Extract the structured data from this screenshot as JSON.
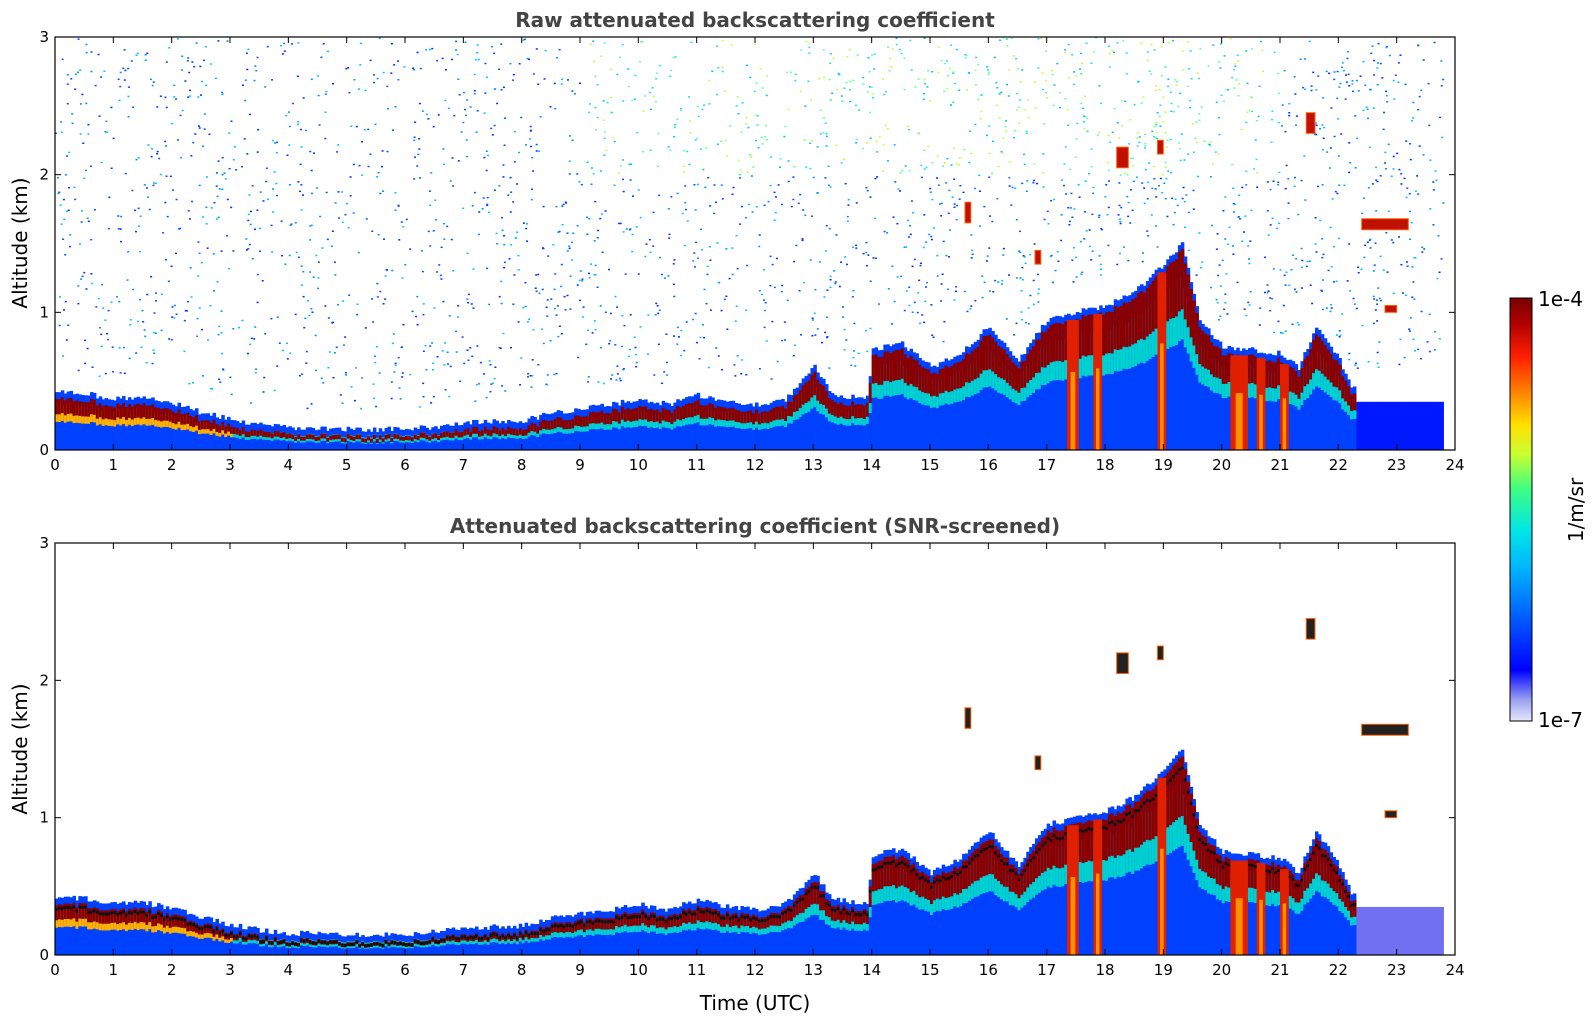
{
  "chart_data": {
    "type": "heatmap",
    "colorbar": {
      "max_label": "1e-4",
      "min_label": "1e-7",
      "unit_label": "1/m/sr",
      "scale": "log",
      "colormap": "jet",
      "colors": [
        "#e8e8fb",
        "#9aa0f0",
        "#0000ff",
        "#00a0ff",
        "#00e6e6",
        "#40ff80",
        "#c8ff30",
        "#ffe000",
        "#ff8000",
        "#ff2000",
        "#b00000",
        "#7a0000"
      ]
    },
    "panels": [
      {
        "title": "Raw attenuated backscattering coefficient",
        "ylabel": "Altitude (km)",
        "xlabel": "",
        "xlim": [
          0,
          24
        ],
        "ylim": [
          0,
          3
        ],
        "xticks": [
          "0",
          "1",
          "2",
          "3",
          "4",
          "5",
          "6",
          "7",
          "8",
          "9",
          "10",
          "11",
          "12",
          "13",
          "14",
          "15",
          "16",
          "17",
          "18",
          "19",
          "20",
          "21",
          "22",
          "23",
          "24"
        ],
        "yticks": [
          "0",
          "1",
          "2",
          "3"
        ],
        "noise_top_km": 3.0
      },
      {
        "title": "Attenuated backscattering coefficient (SNR-screened)",
        "ylabel": "Altitude (km)",
        "xlabel": "Time (UTC)",
        "xlim": [
          0,
          24
        ],
        "ylim": [
          0,
          3
        ],
        "xticks": [
          "0",
          "1",
          "2",
          "3",
          "4",
          "5",
          "6",
          "7",
          "8",
          "9",
          "10",
          "11",
          "12",
          "13",
          "14",
          "15",
          "16",
          "17",
          "18",
          "19",
          "20",
          "21",
          "22",
          "23",
          "24"
        ],
        "yticks": [
          "0",
          "1",
          "2",
          "3"
        ],
        "noise_top_km": 0
      }
    ],
    "boundary_layer_top_km": [
      [
        0,
        0.38
      ],
      [
        0.5,
        0.36
      ],
      [
        1,
        0.32
      ],
      [
        1.5,
        0.33
      ],
      [
        2,
        0.29
      ],
      [
        2.5,
        0.22
      ],
      [
        3,
        0.17
      ],
      [
        3.5,
        0.13
      ],
      [
        4,
        0.11
      ],
      [
        5,
        0.1
      ],
      [
        6,
        0.1
      ],
      [
        6.5,
        0.12
      ],
      [
        7,
        0.15
      ],
      [
        8,
        0.16
      ],
      [
        8.5,
        0.22
      ],
      [
        9,
        0.25
      ],
      [
        9.5,
        0.28
      ],
      [
        10,
        0.32
      ],
      [
        10.5,
        0.28
      ],
      [
        11,
        0.35
      ],
      [
        11.5,
        0.3
      ],
      [
        12,
        0.28
      ],
      [
        12.5,
        0.32
      ],
      [
        13,
        0.55
      ],
      [
        13.3,
        0.35
      ],
      [
        13.9,
        0.33
      ],
      [
        14,
        0.68
      ],
      [
        14.5,
        0.72
      ],
      [
        15,
        0.55
      ],
      [
        15.5,
        0.65
      ],
      [
        16,
        0.85
      ],
      [
        16.5,
        0.6
      ],
      [
        17,
        0.9
      ],
      [
        17.5,
        0.95
      ],
      [
        18,
        1.0
      ],
      [
        18.5,
        1.1
      ],
      [
        19,
        1.3
      ],
      [
        19.3,
        1.45
      ],
      [
        19.6,
        0.9
      ],
      [
        20,
        0.7
      ],
      [
        20.5,
        0.68
      ],
      [
        21,
        0.65
      ],
      [
        21.3,
        0.55
      ],
      [
        21.6,
        0.85
      ],
      [
        22,
        0.6
      ],
      [
        22.2,
        0.4
      ]
    ],
    "elevated_layers": [
      {
        "t": [
          18.2,
          18.4
        ],
        "z": [
          2.05,
          2.2
        ]
      },
      {
        "t": [
          18.9,
          19.0
        ],
        "z": [
          2.15,
          2.25
        ]
      },
      {
        "t": [
          21.45,
          21.6
        ],
        "z": [
          2.3,
          2.45
        ]
      },
      {
        "t": [
          22.4,
          23.2
        ],
        "z": [
          1.6,
          1.68
        ]
      },
      {
        "t": [
          15.6,
          15.7
        ],
        "z": [
          1.65,
          1.8
        ]
      },
      {
        "t": [
          16.8,
          16.9
        ],
        "z": [
          1.35,
          1.45
        ]
      },
      {
        "t": [
          22.8,
          23.0
        ],
        "z": [
          1.0,
          1.05
        ]
      }
    ],
    "precipitation_columns": [
      {
        "t": [
          17.35,
          17.55
        ]
      },
      {
        "t": [
          17.8,
          17.95
        ]
      },
      {
        "t": [
          18.9,
          19.05
        ]
      },
      {
        "t": [
          20.15,
          20.45
        ]
      },
      {
        "t": [
          20.6,
          20.75
        ]
      },
      {
        "t": [
          21.0,
          21.15
        ]
      }
    ]
  }
}
